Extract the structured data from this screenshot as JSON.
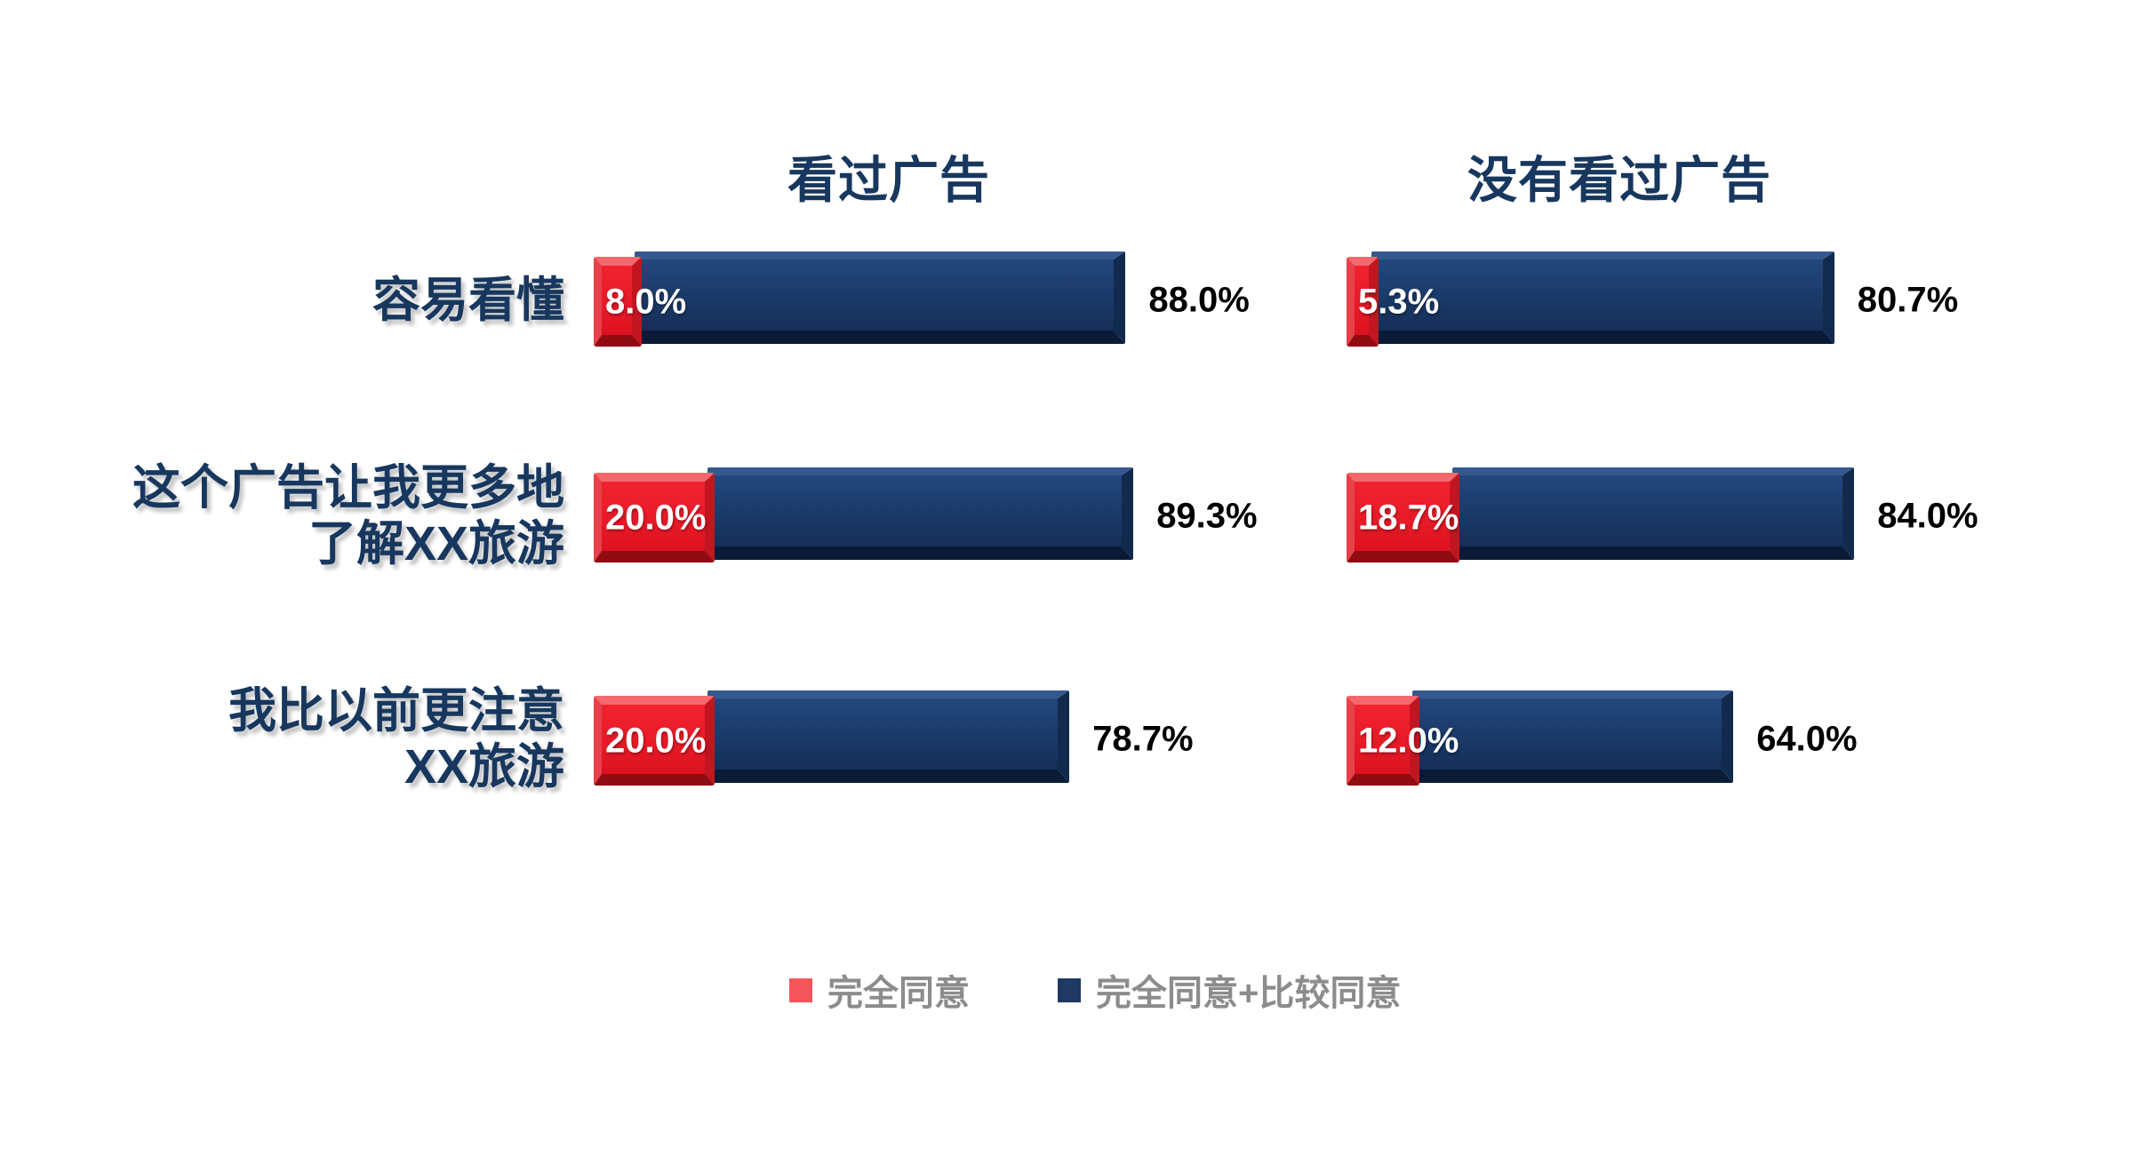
{
  "chart_data": {
    "type": "bar",
    "orientation": "horizontal",
    "unit": "percent",
    "xlim": [
      0,
      100
    ],
    "grid": false,
    "bar_style": "3d-bevel",
    "categories": [
      "容易看懂",
      "这个广告让我更多地\n了解XX旅游",
      "我比以前更注意\nXX旅游"
    ],
    "panels": [
      {
        "title": "看过广告",
        "series": [
          {
            "name": "完全同意",
            "values": [
              8.0,
              20.0,
              20.0
            ],
            "labels": [
              "8.0%",
              "20.0%",
              "20.0%"
            ]
          },
          {
            "name": "完全同意+比较同意",
            "values": [
              88.0,
              89.3,
              78.7
            ],
            "labels": [
              "88.0%",
              "89.3%",
              "78.7%"
            ]
          }
        ]
      },
      {
        "title": "没有看过广告",
        "series": [
          {
            "name": "完全同意",
            "values": [
              5.3,
              18.7,
              12.0
            ],
            "labels": [
              "5.3%",
              "18.7%",
              "12.0%"
            ]
          },
          {
            "name": "完全同意+比较同意",
            "values": [
              80.7,
              84.0,
              64.0
            ],
            "labels": [
              "80.7%",
              "84.0%",
              "64.0%"
            ]
          }
        ]
      }
    ],
    "legend": {
      "position": "bottom-center",
      "items": [
        {
          "label": "完全同意",
          "color": "#F4555B"
        },
        {
          "label": "完全同意+比较同意",
          "color": "#1F3864"
        }
      ]
    },
    "colors": {
      "agree_bar": "#EA1B29",
      "total_bar": "#1C3C6C",
      "category_text": "#17375E",
      "header_text": "#17375E",
      "value_text": "#FFFFFF",
      "total_text": "#000000",
      "legend_text": "#8C8C8C",
      "background": "#FFFFFF"
    }
  }
}
